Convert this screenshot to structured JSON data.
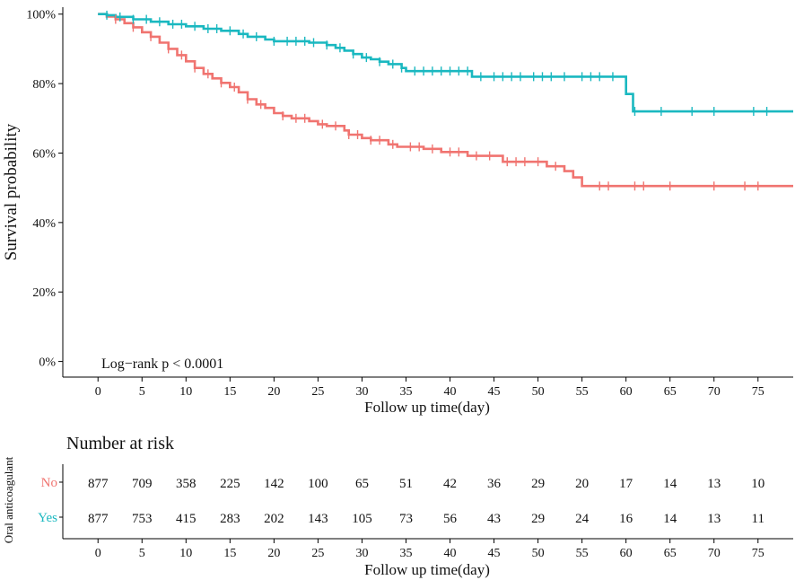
{
  "chart_data": {
    "type": "line",
    "subtype": "kaplan-meier",
    "ylabel": "Survival probability",
    "xlabel": "Follow up time(day)",
    "xlim": [
      -4,
      79
    ],
    "ylim": [
      -0.045,
      1.02
    ],
    "x_ticks": [
      0,
      5,
      10,
      15,
      20,
      25,
      30,
      35,
      40,
      45,
      50,
      55,
      60,
      65,
      70,
      75
    ],
    "y_ticks": [
      {
        "value": 0,
        "label": "0%"
      },
      {
        "value": 0.2,
        "label": "20%"
      },
      {
        "value": 0.4,
        "label": "40%"
      },
      {
        "value": 0.6,
        "label": "60%"
      },
      {
        "value": 0.8,
        "label": "80%"
      },
      {
        "value": 1.0,
        "label": "100%"
      }
    ],
    "annotation": "Log−rank  p < 0.0001",
    "series": [
      {
        "name": "No",
        "color": "#f07470",
        "steps": [
          [
            0,
            1.0
          ],
          [
            1,
            0.993
          ],
          [
            2,
            0.985
          ],
          [
            3,
            0.974
          ],
          [
            4,
            0.962
          ],
          [
            5,
            0.948
          ],
          [
            6,
            0.935
          ],
          [
            7,
            0.918
          ],
          [
            8,
            0.9
          ],
          [
            9,
            0.882
          ],
          [
            10,
            0.864
          ],
          [
            11,
            0.845
          ],
          [
            12,
            0.828
          ],
          [
            13,
            0.815
          ],
          [
            14,
            0.802
          ],
          [
            15,
            0.79
          ],
          [
            16,
            0.775
          ],
          [
            17,
            0.755
          ],
          [
            18,
            0.74
          ],
          [
            19,
            0.73
          ],
          [
            20,
            0.715
          ],
          [
            21,
            0.707
          ],
          [
            22,
            0.7
          ],
          [
            24,
            0.692
          ],
          [
            25,
            0.683
          ],
          [
            26,
            0.678
          ],
          [
            28,
            0.665
          ],
          [
            28.5,
            0.653
          ],
          [
            30,
            0.643
          ],
          [
            31,
            0.637
          ],
          [
            33,
            0.625
          ],
          [
            34,
            0.618
          ],
          [
            37,
            0.612
          ],
          [
            39,
            0.603
          ],
          [
            42,
            0.592
          ],
          [
            46,
            0.575
          ],
          [
            51,
            0.562
          ],
          [
            53,
            0.548
          ],
          [
            54,
            0.53
          ],
          [
            55,
            0.505
          ],
          [
            79,
            0.505
          ]
        ],
        "censor_x": [
          2,
          4,
          6,
          8,
          9.5,
          11,
          12.5,
          14,
          15.5,
          17,
          18.5,
          21,
          22.5,
          23.5,
          25.5,
          27,
          28.5,
          29.5,
          31,
          32,
          33.5,
          35.5,
          36.5,
          38,
          40,
          41,
          43,
          44.5,
          46.5,
          47.5,
          48.5,
          50,
          52,
          57,
          58,
          61,
          62,
          65,
          70,
          73.5,
          75
        ]
      },
      {
        "name": "Yes",
        "color": "#1ab8c0",
        "steps": [
          [
            0,
            1.0
          ],
          [
            1,
            0.997
          ],
          [
            2,
            0.992
          ],
          [
            4,
            0.985
          ],
          [
            6,
            0.978
          ],
          [
            8,
            0.971
          ],
          [
            10,
            0.965
          ],
          [
            12,
            0.958
          ],
          [
            14,
            0.952
          ],
          [
            16,
            0.943
          ],
          [
            17,
            0.935
          ],
          [
            19,
            0.927
          ],
          [
            20,
            0.922
          ],
          [
            24,
            0.918
          ],
          [
            26,
            0.911
          ],
          [
            27,
            0.903
          ],
          [
            28,
            0.895
          ],
          [
            29,
            0.885
          ],
          [
            30,
            0.875
          ],
          [
            31,
            0.87
          ],
          [
            32,
            0.863
          ],
          [
            33,
            0.856
          ],
          [
            34.5,
            0.845
          ],
          [
            35,
            0.836
          ],
          [
            42.5,
            0.82
          ],
          [
            60,
            0.77
          ],
          [
            60.8,
            0.72
          ],
          [
            79,
            0.72
          ]
        ],
        "censor_x": [
          1,
          2.5,
          4,
          5.5,
          7,
          8.5,
          9.5,
          11,
          12.5,
          13.5,
          15,
          16.5,
          18,
          20,
          21.5,
          22.5,
          23.5,
          24.5,
          26,
          27.5,
          29,
          30.5,
          32,
          33.5,
          34.5,
          36,
          37,
          38,
          39,
          40,
          41,
          42,
          43.5,
          45,
          46,
          47,
          48,
          49.5,
          50.5,
          51.5,
          53,
          55,
          56,
          57,
          58.5,
          61,
          64,
          67.5,
          70,
          74.5,
          76
        ]
      }
    ],
    "risk_table": {
      "title": "Number at risk",
      "y_label": "Oral anticoagulant",
      "xlabel": "Follow up time(day)",
      "rows": [
        {
          "name": "No",
          "color": "#f07470",
          "values": [
            "877",
            "709",
            "358",
            "225",
            "142",
            "100",
            "65",
            "51",
            "42",
            "36",
            "29",
            "20",
            "17",
            "14",
            "13",
            "10"
          ]
        },
        {
          "name": "Yes",
          "color": "#1ab8c0",
          "values": [
            "877",
            "753",
            "415",
            "283",
            "202",
            "143",
            "105",
            "73",
            "56",
            "43",
            "29",
            "24",
            "16",
            "14",
            "13",
            "11"
          ]
        }
      ]
    }
  }
}
